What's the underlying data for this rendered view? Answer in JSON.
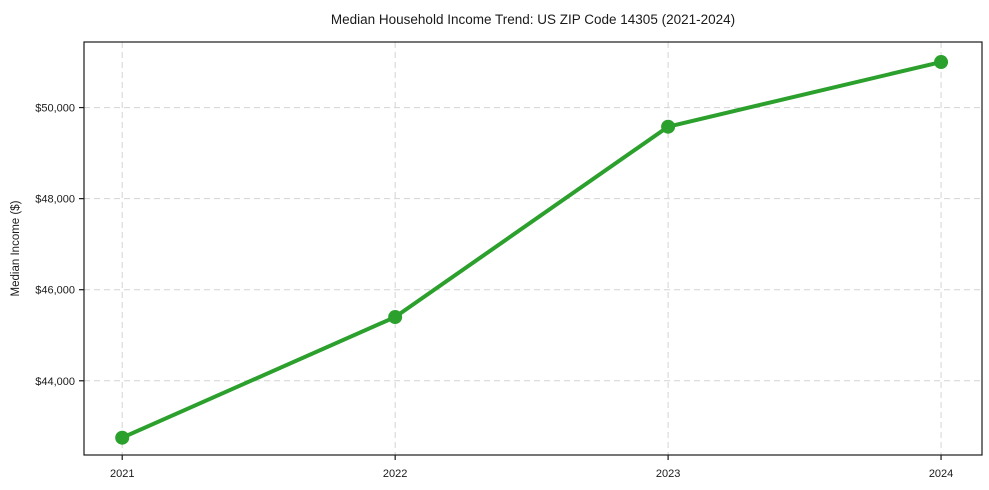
{
  "chart_data": {
    "type": "line",
    "title": "Median Household Income Trend: US ZIP Code 14305 (2021-2024)",
    "xlabel": "",
    "ylabel": "Median Income ($)",
    "x": [
      2021,
      2022,
      2023,
      2024
    ],
    "x_tick_labels": [
      "2021",
      "2022",
      "2023",
      "2024"
    ],
    "series": [
      {
        "name": "Median Household Income",
        "values": [
          42750,
          45400,
          49580,
          51000
        ]
      }
    ],
    "y_ticks": [
      44000,
      46000,
      48000,
      50000
    ],
    "y_tick_labels": [
      "$44,000",
      "$46,000",
      "$48,000",
      "$50,000"
    ],
    "xlim": [
      2020.86,
      2024.15
    ],
    "ylim": [
      42370,
      51440
    ],
    "grid": true,
    "grid_style": "dashed",
    "legend_position": "none",
    "marker": "circle",
    "marker_radius": 7,
    "line_width": 4,
    "colors": {
      "line": "#2ca02c",
      "grid": "#d4d4d4",
      "spine": "#1a1a1a",
      "text": "#1a1a1a",
      "background": "#ffffff"
    }
  }
}
